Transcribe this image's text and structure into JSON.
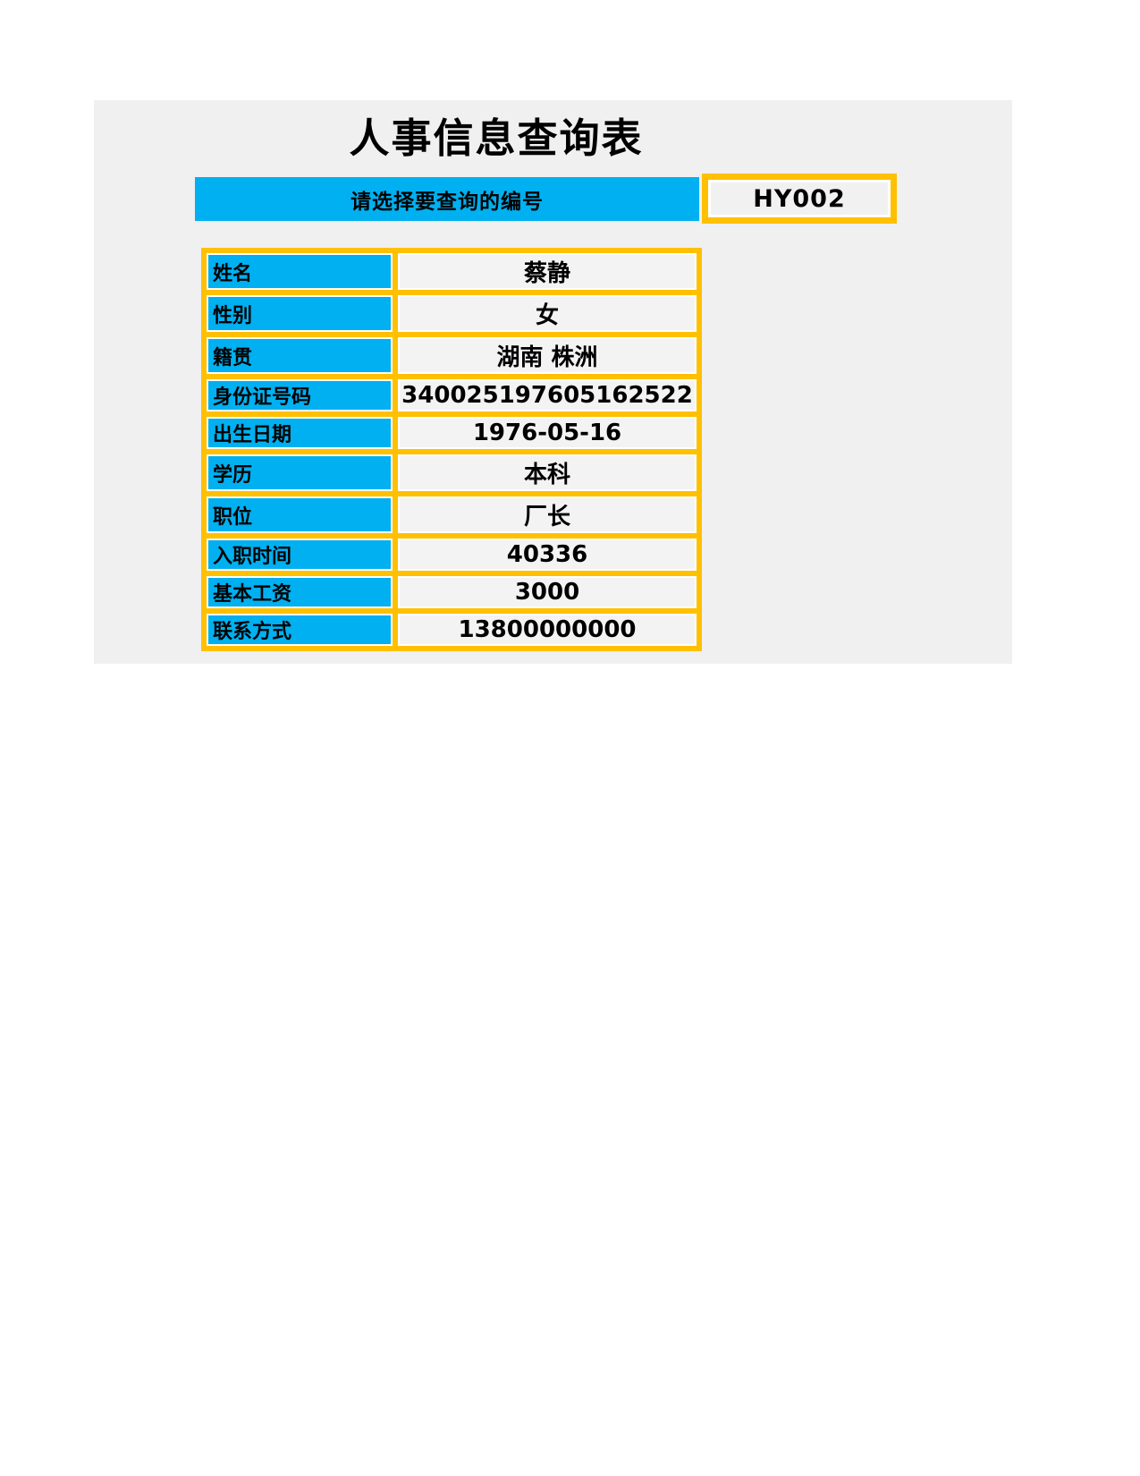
{
  "page": {
    "title": "人事信息查询表"
  },
  "query": {
    "prompt": "请选择要查询的编号",
    "selected_id": "HY002"
  },
  "fields": [
    {
      "label": "姓名",
      "value": "蔡静"
    },
    {
      "label": "性别",
      "value": "女"
    },
    {
      "label": "籍贯",
      "value": "湖南 株洲"
    },
    {
      "label": "身份证号码",
      "value": "340025197605162522"
    },
    {
      "label": "出生日期",
      "value": "1976-05-16"
    },
    {
      "label": "学历",
      "value": "本科"
    },
    {
      "label": "职位",
      "value": "厂长"
    },
    {
      "label": "入职时间",
      "value": "40336"
    },
    {
      "label": "基本工资",
      "value": "3000"
    },
    {
      "label": "联系方式",
      "value": "13800000000"
    }
  ],
  "colors": {
    "accent_blue": "#00b0f0",
    "accent_gold": "#ffc000",
    "panel_bg": "#f0f0f0",
    "cell_bg": "#f3f3f3",
    "text": "#000000"
  }
}
